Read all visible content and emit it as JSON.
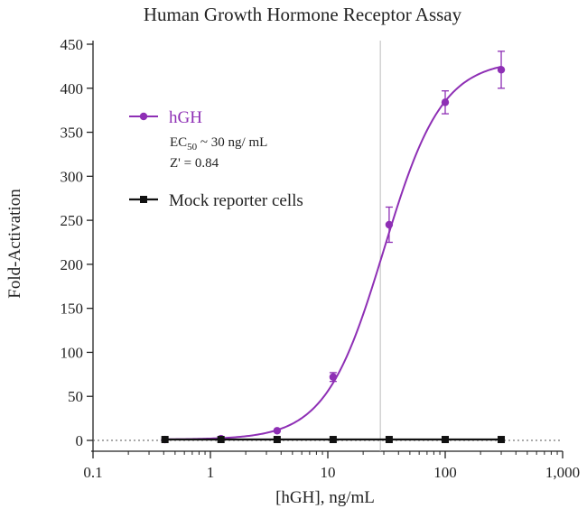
{
  "chart_data": {
    "type": "scatter",
    "title": "Human Growth Hormone Receptor Assay",
    "xlabel": "[hGH], ng/mL",
    "ylabel": "Fold-Activation",
    "xscale": "log",
    "xlim": [
      0.1,
      1000
    ],
    "ylim": [
      0,
      450
    ],
    "x_ticks": [
      0.1,
      1,
      10,
      100,
      1000
    ],
    "x_tick_labels": [
      "0.1",
      "1",
      "10",
      "100",
      "1,000"
    ],
    "y_ticks": [
      0,
      50,
      100,
      150,
      200,
      250,
      300,
      350,
      400,
      450
    ],
    "y_tick_labels": [
      "0",
      "50",
      "100",
      "150",
      "200",
      "250",
      "300",
      "350",
      "400",
      "450"
    ],
    "grid": false,
    "legend_position": "top-left",
    "vertical_reference_line_x": 28,
    "series": [
      {
        "name": "hGH",
        "color": "#8e2fb5",
        "x": [
          0.41,
          1.23,
          3.7,
          11.1,
          33.3,
          100,
          300
        ],
        "y": [
          1,
          2,
          11,
          72,
          245,
          384,
          421
        ],
        "error": [
          0,
          0,
          0,
          5,
          20,
          13,
          21
        ],
        "fit": "sigmoidal",
        "fit_bottom": 1,
        "fit_top": 432,
        "fit_ec50": 30,
        "fit_hill": 1.75
      },
      {
        "name": "Mock reporter cells",
        "color": "#111111",
        "x": [
          0.41,
          1.23,
          3.7,
          11.1,
          33.3,
          100,
          300
        ],
        "y": [
          1,
          1,
          1,
          1,
          1,
          1,
          1
        ],
        "error": [
          0,
          0,
          0,
          0,
          0,
          0,
          0
        ],
        "fit": "line"
      }
    ],
    "annotations": {
      "ec50_prefix": "EC",
      "ec50_sub": "50",
      "ec50_value": " ~ 30 ng/ mL",
      "zprime": "Z' = 0.84"
    }
  }
}
